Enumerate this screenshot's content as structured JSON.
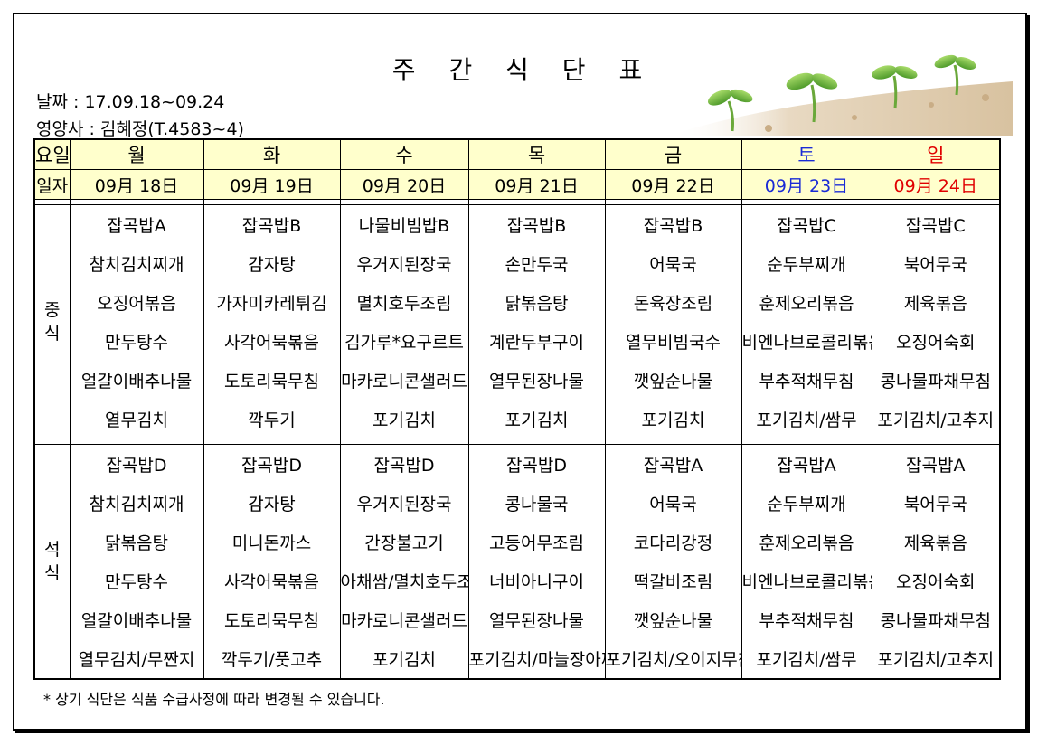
{
  "title": "주 간 식 단 표",
  "date_line": "날짜 : 17.09.18~09.24",
  "dietitian_line": "영양사 : 김혜정(T.4583~4)",
  "header": {
    "day_label": "요일",
    "date_label": "일자",
    "days": [
      "월",
      "화",
      "수",
      "목",
      "금",
      "토",
      "일"
    ],
    "dates": [
      "09月 18日",
      "09月 19日",
      "09月 20日",
      "09月 21日",
      "09月 22日",
      "09月 23日",
      "09月 24日"
    ]
  },
  "lunch": {
    "label": "중\n식",
    "rows": [
      [
        "잡곡밥A",
        "잡곡밥B",
        "나물비빔밥B",
        "잡곡밥B",
        "잡곡밥B",
        "잡곡밥C",
        "잡곡밥C"
      ],
      [
        "참치김치찌개",
        "감자탕",
        "우거지된장국",
        "손만두국",
        "어묵국",
        "순두부찌개",
        "북어무국"
      ],
      [
        "오징어볶음",
        "가자미카레튀김",
        "멸치호두조림",
        "닭볶음탕",
        "돈육장조림",
        "훈제오리볶음",
        "제육볶음"
      ],
      [
        "만두탕수",
        "사각어묵볶음",
        "김가루*요구르트",
        "계란두부구이",
        "열무비빔국수",
        "비엔나브로콜리볶음",
        "오징어숙회"
      ],
      [
        "얼갈이배추나물",
        "도토리묵무침",
        "마카로니콘샐러드",
        "열무된장나물",
        "깻잎순나물",
        "부추적채무침",
        "콩나물파채무침"
      ],
      [
        "열무김치",
        "깍두기",
        "포기김치",
        "포기김치",
        "포기김치",
        "포기김치/쌈무",
        "포기김치/고추지"
      ]
    ]
  },
  "dinner": {
    "label": "석\n식",
    "rows": [
      [
        "잡곡밥D",
        "잡곡밥D",
        "잡곡밥D",
        "잡곡밥D",
        "잡곡밥A",
        "잡곡밥A",
        "잡곡밥A"
      ],
      [
        "참치김치찌개",
        "감자탕",
        "우거지된장국",
        "콩나물국",
        "어묵국",
        "순두부찌개",
        "북어무국"
      ],
      [
        "닭볶음탕",
        "미니돈까스",
        "간장불고기",
        "고등어무조림",
        "코다리강정",
        "훈제오리볶음",
        "제육볶음"
      ],
      [
        "만두탕수",
        "사각어묵볶음",
        "아채쌈/멸치호두조림",
        "너비아니구이",
        "떡갈비조림",
        "비엔나브로콜리볶음",
        "오징어숙회"
      ],
      [
        "얼갈이배추나물",
        "도토리묵무침",
        "마카로니콘샐러드",
        "열무된장나물",
        "깻잎순나물",
        "부추적채무침",
        "콩나물파채무침"
      ],
      [
        "열무김치/무짠지",
        "깍두기/풋고추",
        "포기김치",
        "포기김치/마늘장아찌",
        "포기김치/오이지무침",
        "포기김치/쌈무",
        "포기김치/고추지"
      ]
    ]
  },
  "note": "* 상기 식단은 식품 수급사정에 따라 변경될 수 있습니다.",
  "colors": {
    "saturday": "#1a2bd6",
    "sunday": "#e00000",
    "header_bg": "#ffffcc"
  }
}
